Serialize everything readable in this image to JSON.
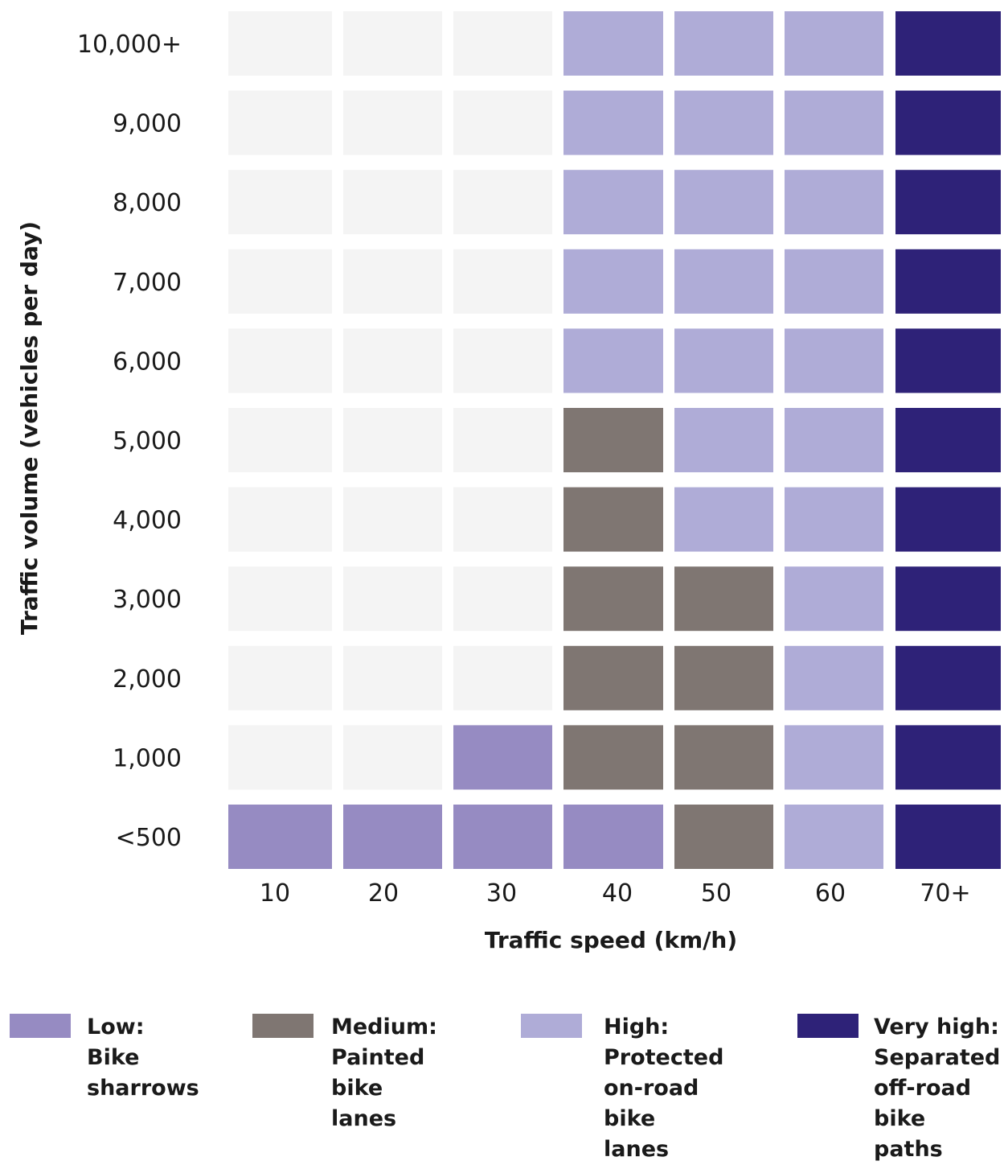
{
  "chart_data": {
    "type": "heatmap",
    "xlabel": "Traffic speed (km/h)",
    "ylabel": "Traffic volume (vehicles per day)",
    "x_categories": [
      "10",
      "20",
      "30",
      "40",
      "50",
      "60",
      "70+"
    ],
    "y_categories": [
      "10,000+",
      "9,000",
      "8,000",
      "7,000",
      "6,000",
      "5,000",
      "4,000",
      "3,000",
      "2,000",
      "1,000",
      "<500"
    ],
    "levels": {
      "none": {
        "color": "#f4f4f4"
      },
      "low": {
        "color": "#968bc2"
      },
      "medium": {
        "color": "#7f7672"
      },
      "high": {
        "color": "#afacd7"
      },
      "very_high": {
        "color": "#2e2278"
      }
    },
    "cells": [
      [
        "none",
        "none",
        "none",
        "high",
        "high",
        "high",
        "very_high"
      ],
      [
        "none",
        "none",
        "none",
        "high",
        "high",
        "high",
        "very_high"
      ],
      [
        "none",
        "none",
        "none",
        "high",
        "high",
        "high",
        "very_high"
      ],
      [
        "none",
        "none",
        "none",
        "high",
        "high",
        "high",
        "very_high"
      ],
      [
        "none",
        "none",
        "none",
        "high",
        "high",
        "high",
        "very_high"
      ],
      [
        "none",
        "none",
        "none",
        "medium",
        "high",
        "high",
        "very_high"
      ],
      [
        "none",
        "none",
        "none",
        "medium",
        "high",
        "high",
        "very_high"
      ],
      [
        "none",
        "none",
        "none",
        "medium",
        "medium",
        "high",
        "very_high"
      ],
      [
        "none",
        "none",
        "none",
        "medium",
        "medium",
        "high",
        "very_high"
      ],
      [
        "none",
        "none",
        "low",
        "medium",
        "medium",
        "high",
        "very_high"
      ],
      [
        "low",
        "low",
        "low",
        "low",
        "medium",
        "high",
        "very_high"
      ]
    ],
    "legend": [
      {
        "level": "low",
        "label": "Low:\nBike\nsharrows",
        "color": "#968bc2"
      },
      {
        "level": "medium",
        "label": "Medium:\nPainted\nbike lanes",
        "color": "#7f7672"
      },
      {
        "level": "high",
        "label": "High:\nProtected\non-road\nbike lanes",
        "color": "#afacd7"
      },
      {
        "level": "very_high",
        "label": "Very high:\nSeparated\noff-road\nbike paths",
        "color": "#2e2278"
      }
    ]
  }
}
